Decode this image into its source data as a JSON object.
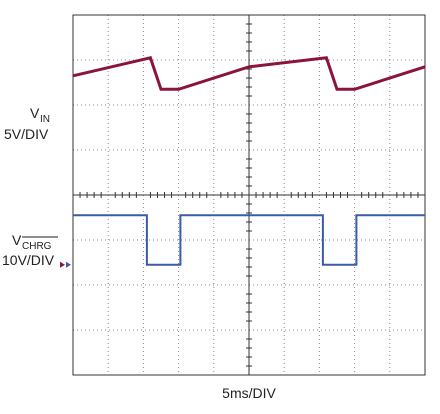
{
  "chart_data": {
    "type": "line",
    "title": "",
    "xlabel": "5ms/DIV",
    "x_divisions": 10,
    "y_divisions": 8,
    "grid": true,
    "channels": [
      {
        "label_main": "V",
        "label_sub": "IN",
        "label_scale": "5V/DIV",
        "color": "#8b1538",
        "x": [
          0,
          2.2,
          2.5,
          3.0,
          5.0,
          7.2,
          7.5,
          8.0,
          10.0
        ],
        "y": [
          6.65,
          7.05,
          6.35,
          6.35,
          6.85,
          7.05,
          6.35,
          6.35,
          6.85
        ]
      },
      {
        "label_main": "V",
        "label_sub": "CHRG",
        "label_scale": "10V/DIV",
        "color": "#3a5ba9",
        "x": [
          0,
          2.1,
          2.1,
          3.05,
          3.05,
          7.1,
          7.1,
          8.05,
          8.05,
          10.0
        ],
        "y": [
          3.55,
          3.55,
          2.45,
          2.45,
          3.55,
          3.55,
          2.45,
          2.45,
          3.55,
          3.55
        ]
      }
    ],
    "ground_marker": {
      "color": "#8b1538",
      "secondary_color": "#3a5ba9",
      "y": 2.45
    }
  }
}
